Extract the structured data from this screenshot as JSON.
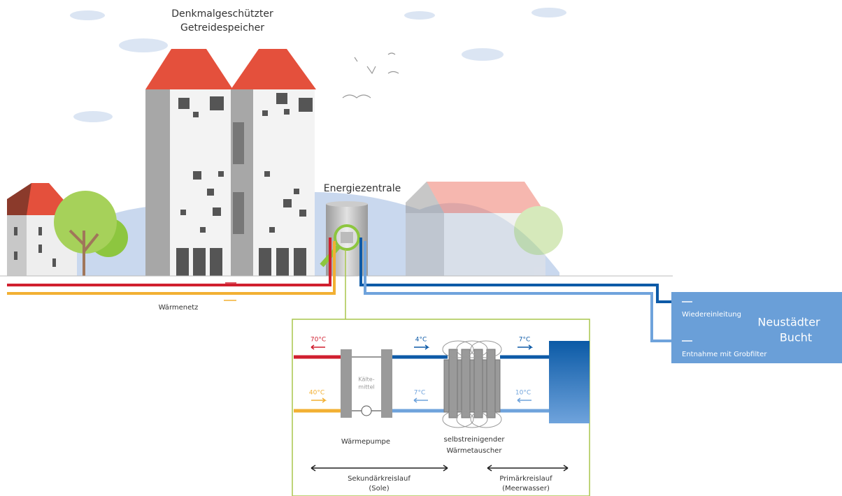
{
  "scene": {
    "building_label": [
      "Denkmalgeschützter",
      "Getreidespeicher"
    ],
    "plant_label": "Energiezentrale",
    "network_label": "Wärmenetz",
    "return_label": "Wiedereinleitung",
    "intake_label": "Entnahme mit Grobfilter",
    "bay_label": [
      "Neustädter",
      "Bucht"
    ]
  },
  "detail": {
    "temps": {
      "hot_out": "70°C",
      "hot_in": "40°C",
      "brine_cold": "4°C",
      "brine_warm": "7°C",
      "sea_out": "7°C",
      "sea_in": "10°C"
    },
    "refrigerant": [
      "Kälte-",
      "mittel"
    ],
    "heat_pump": "Wärmepumpe",
    "exchanger": [
      "selbstreinigender",
      "Wärmetauscher"
    ],
    "secondary": [
      "Sekundärkreislauf",
      "(Sole)"
    ],
    "primary": [
      "Primärkreislauf",
      "(Meerwasser)"
    ]
  }
}
